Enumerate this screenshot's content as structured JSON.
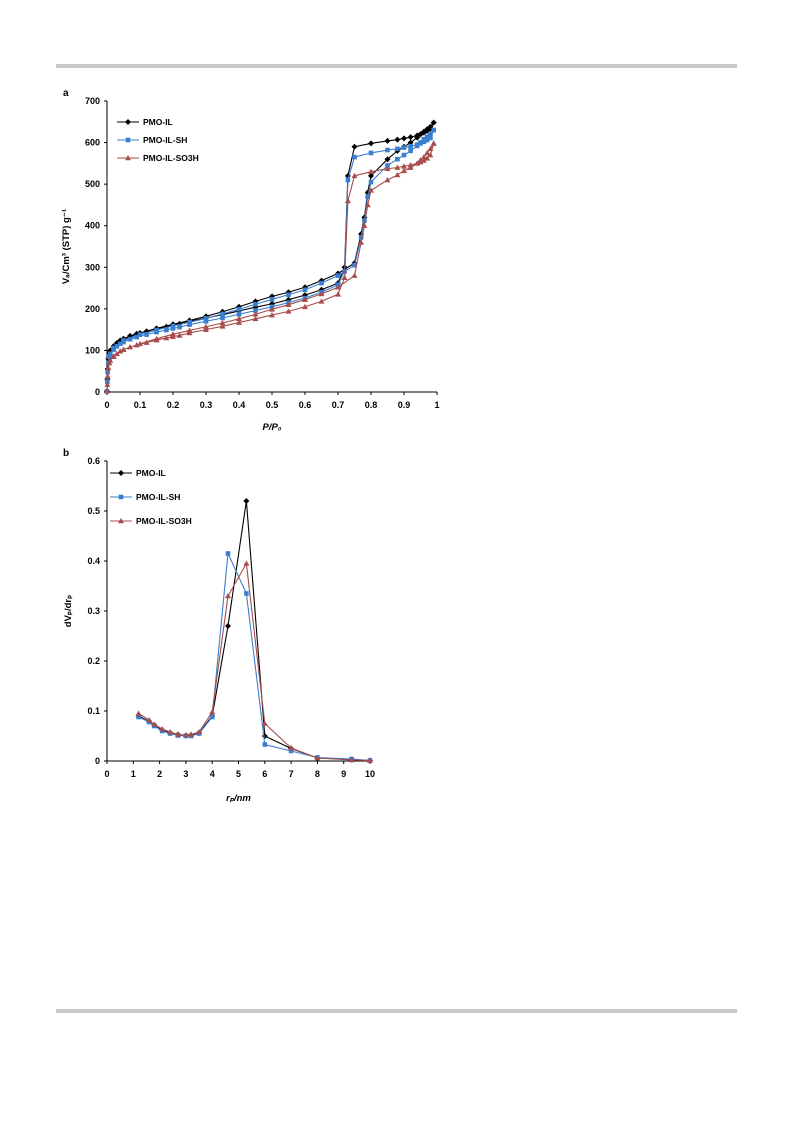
{
  "panels": {
    "a": "a",
    "b": "b"
  },
  "chart_data": [
    {
      "type": "line",
      "panel": "a",
      "xlabel": "P/P₀",
      "ylabel": "Vₐ/Cm³ (STP) g⁻¹",
      "xlim": [
        0,
        1
      ],
      "ylim": [
        0,
        700
      ],
      "xticks": [
        0,
        0.1,
        0.2,
        0.3,
        0.4,
        0.5,
        0.6,
        0.7,
        0.8,
        0.9,
        1
      ],
      "yticks": [
        0,
        100,
        200,
        300,
        400,
        500,
        600,
        700
      ],
      "grid": false,
      "legend_position": "top-left",
      "series": [
        {
          "name": "PMO-IL",
          "color": "#000000",
          "marker": "diamond",
          "x": [
            0.0,
            0.001,
            0.002,
            0.004,
            0.007,
            0.01,
            0.02,
            0.03,
            0.04,
            0.05,
            0.07,
            0.09,
            0.12,
            0.15,
            0.18,
            0.2,
            0.22,
            0.25,
            0.3,
            0.35,
            0.4,
            0.45,
            0.5,
            0.55,
            0.6,
            0.65,
            0.7,
            0.72,
            0.73,
            0.75,
            0.8,
            0.85,
            0.88,
            0.9,
            0.92,
            0.94,
            0.95,
            0.96,
            0.97,
            0.98,
            0.99,
            0.99,
            0.98,
            0.97,
            0.96,
            0.95,
            0.94,
            0.92,
            0.9,
            0.88,
            0.85,
            0.8,
            0.79,
            0.78,
            0.77,
            0.75,
            0.7,
            0.65,
            0.6,
            0.55,
            0.5,
            0.45,
            0.4,
            0.35,
            0.3,
            0.25,
            0.2,
            0.15,
            0.1,
            0.05,
            0.02
          ],
          "y": [
            2,
            30,
            55,
            80,
            95,
            100,
            110,
            118,
            124,
            128,
            135,
            140,
            146,
            152,
            157,
            161,
            164,
            170,
            178,
            186,
            195,
            204,
            212,
            222,
            233,
            246,
            262,
            300,
            520,
            590,
            598,
            604,
            607,
            610,
            613,
            617,
            620,
            624,
            628,
            633,
            648,
            648,
            638,
            632,
            626,
            620,
            612,
            600,
            590,
            580,
            560,
            520,
            480,
            420,
            380,
            310,
            285,
            268,
            252,
            240,
            230,
            218,
            205,
            193,
            182,
            172,
            163,
            153,
            142,
            127,
            110
          ]
        },
        {
          "name": "PMO-IL-SH",
          "color": "#3a7fcf",
          "marker": "square",
          "x": [
            0.0,
            0.001,
            0.002,
            0.004,
            0.007,
            0.01,
            0.02,
            0.03,
            0.04,
            0.05,
            0.07,
            0.09,
            0.12,
            0.15,
            0.18,
            0.2,
            0.22,
            0.25,
            0.3,
            0.35,
            0.4,
            0.45,
            0.5,
            0.55,
            0.6,
            0.65,
            0.7,
            0.72,
            0.73,
            0.75,
            0.8,
            0.85,
            0.88,
            0.9,
            0.92,
            0.94,
            0.95,
            0.96,
            0.97,
            0.98,
            0.99,
            0.99,
            0.98,
            0.97,
            0.96,
            0.95,
            0.94,
            0.92,
            0.9,
            0.88,
            0.85,
            0.8,
            0.79,
            0.78,
            0.77,
            0.75,
            0.7,
            0.65,
            0.6,
            0.55,
            0.5,
            0.45,
            0.4,
            0.35,
            0.3,
            0.25,
            0.2,
            0.15,
            0.1,
            0.05,
            0.02
          ],
          "y": [
            2,
            25,
            48,
            70,
            85,
            92,
            102,
            110,
            116,
            120,
            127,
            132,
            138,
            144,
            149,
            153,
            156,
            162,
            170,
            178,
            187,
            196,
            205,
            215,
            226,
            240,
            258,
            290,
            510,
            565,
            575,
            582,
            585,
            588,
            591,
            595,
            598,
            602,
            606,
            611,
            630,
            630,
            620,
            614,
            608,
            600,
            592,
            580,
            570,
            560,
            545,
            505,
            470,
            412,
            372,
            305,
            280,
            262,
            246,
            234,
            223,
            211,
            199,
            188,
            177,
            168,
            159,
            149,
            138,
            124,
            106
          ]
        },
        {
          "name": "PMO-IL-SO3H",
          "color": "#a84c4c",
          "marker": "triangle",
          "x": [
            0.0,
            0.001,
            0.002,
            0.004,
            0.007,
            0.01,
            0.02,
            0.03,
            0.04,
            0.05,
            0.07,
            0.09,
            0.12,
            0.15,
            0.18,
            0.2,
            0.22,
            0.25,
            0.3,
            0.35,
            0.4,
            0.45,
            0.5,
            0.55,
            0.6,
            0.65,
            0.7,
            0.72,
            0.73,
            0.75,
            0.8,
            0.85,
            0.88,
            0.9,
            0.92,
            0.94,
            0.95,
            0.96,
            0.97,
            0.98,
            0.99,
            0.99,
            0.98,
            0.97,
            0.96,
            0.95,
            0.94,
            0.92,
            0.9,
            0.88,
            0.85,
            0.8,
            0.79,
            0.78,
            0.77,
            0.75,
            0.7,
            0.65,
            0.6,
            0.55,
            0.5,
            0.45,
            0.4,
            0.35,
            0.3,
            0.25,
            0.2,
            0.15,
            0.1,
            0.05,
            0.02
          ],
          "y": [
            2,
            18,
            38,
            58,
            70,
            76,
            85,
            92,
            98,
            102,
            108,
            113,
            119,
            125,
            130,
            133,
            136,
            142,
            150,
            158,
            167,
            176,
            185,
            194,
            205,
            218,
            235,
            275,
            460,
            520,
            530,
            537,
            540,
            543,
            546,
            550,
            553,
            557,
            562,
            570,
            598,
            598,
            585,
            575,
            565,
            558,
            550,
            540,
            532,
            522,
            510,
            485,
            450,
            400,
            360,
            280,
            252,
            236,
            222,
            210,
            199,
            187,
            176,
            166,
            157,
            148,
            139,
            128,
            116,
            102,
            86
          ]
        }
      ]
    },
    {
      "type": "line",
      "panel": "b",
      "xlabel": "rₚ/nm",
      "ylabel": "dVₚ/drₚ",
      "xlim": [
        0,
        10
      ],
      "ylim": [
        0,
        0.6
      ],
      "xticks": [
        0,
        1,
        2,
        3,
        4,
        5,
        6,
        7,
        8,
        9,
        10
      ],
      "yticks": [
        0,
        0.1,
        0.2,
        0.3,
        0.4,
        0.5,
        0.6
      ],
      "grid": false,
      "legend_position": "top-left",
      "series": [
        {
          "name": "PMO-IL",
          "color": "#000000",
          "marker": "diamond",
          "x": [
            1.2,
            1.6,
            1.8,
            2.1,
            2.4,
            2.7,
            3.0,
            3.2,
            3.5,
            4.0,
            4.6,
            5.3,
            6.0,
            7.0,
            8.0,
            9.3,
            10.0
          ],
          "y": [
            0.09,
            0.079,
            0.072,
            0.062,
            0.056,
            0.053,
            0.051,
            0.052,
            0.056,
            0.09,
            0.27,
            0.52,
            0.05,
            0.025,
            0.006,
            0.003,
            0.001
          ]
        },
        {
          "name": "PMO-IL-SH",
          "color": "#3a7fcf",
          "marker": "square",
          "x": [
            1.2,
            1.6,
            1.8,
            2.1,
            2.4,
            2.7,
            3.0,
            3.2,
            3.5,
            4.0,
            4.6,
            5.3,
            6.0,
            7.0,
            8.0,
            9.3,
            10.0
          ],
          "y": [
            0.088,
            0.078,
            0.07,
            0.06,
            0.055,
            0.051,
            0.05,
            0.05,
            0.055,
            0.088,
            0.415,
            0.335,
            0.033,
            0.02,
            0.007,
            0.004,
            0.001
          ]
        },
        {
          "name": "PMO-IL-SO3H",
          "color": "#a84c4c",
          "marker": "triangle",
          "x": [
            1.2,
            1.6,
            1.8,
            2.1,
            2.4,
            2.7,
            3.0,
            3.2,
            3.5,
            4.0,
            4.6,
            5.3,
            6.0,
            7.0,
            8.0,
            9.3,
            10.0
          ],
          "y": [
            0.095,
            0.082,
            0.073,
            0.064,
            0.058,
            0.053,
            0.052,
            0.053,
            0.058,
            0.098,
            0.33,
            0.395,
            0.075,
            0.026,
            0.006,
            0.002,
            0.001
          ]
        }
      ]
    }
  ]
}
